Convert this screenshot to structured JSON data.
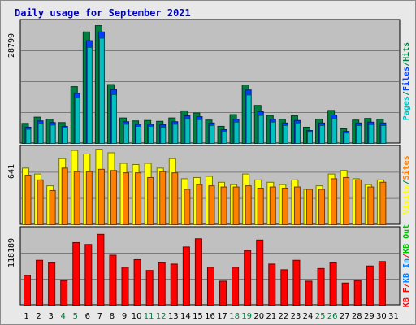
{
  "title": "Daily usage for September 2021",
  "colors": {
    "pages": "#00c0c0",
    "files": "#0040ff",
    "hits": "#008040",
    "sites": "#ff8000",
    "visits": "#ffff00",
    "kb_out": "#00c000",
    "kb_in": "#0080ff",
    "kb_f": "#ff0000",
    "weekday_tick": "#000000",
    "weekend_tick": "#008040"
  },
  "chart_data": [
    {
      "type": "bar",
      "panel": "hits-files-pages",
      "categories": [
        "1",
        "2",
        "3",
        "4",
        "5",
        "6",
        "7",
        "8",
        "9",
        "10",
        "11",
        "12",
        "13",
        "14",
        "15",
        "16",
        "17",
        "18",
        "19",
        "20",
        "21",
        "22",
        "23",
        "24",
        "25",
        "26",
        "27",
        "28",
        "29",
        "30",
        "31"
      ],
      "ylabel": "28799",
      "right_labels": [
        "Pages",
        "/",
        "Files",
        "/",
        "Hits"
      ],
      "ylim": [
        0,
        28799
      ],
      "series": [
        {
          "name": "Hits",
          "values": [
            4800,
            6300,
            5800,
            5000,
            13600,
            26700,
            28200,
            14100,
            6100,
            5400,
            5500,
            5300,
            6100,
            7800,
            7300,
            5600,
            4100,
            6900,
            14000,
            9100,
            6700,
            5800,
            6600,
            3900,
            5800,
            7900,
            3500,
            5600,
            6000,
            5800,
            null
          ]
        },
        {
          "name": "Files",
          "values": [
            3900,
            5400,
            5000,
            4100,
            12000,
            24600,
            26700,
            12900,
            5200,
            4600,
            4600,
            4500,
            5200,
            6600,
            6400,
            4900,
            3300,
            5800,
            12800,
            7600,
            5800,
            4900,
            5500,
            3100,
            4900,
            6800,
            2900,
            4900,
            5100,
            4900,
            null
          ]
        },
        {
          "name": "Pages",
          "values": [
            3400,
            4700,
            4400,
            3700,
            11000,
            23000,
            25200,
            11700,
            4600,
            4100,
            4100,
            3900,
            4600,
            5900,
            5700,
            4300,
            2900,
            5100,
            11600,
            6700,
            5100,
            4300,
            4900,
            2700,
            4300,
            6000,
            2500,
            4300,
            4500,
            4300,
            null
          ]
        }
      ]
    },
    {
      "type": "bar",
      "panel": "visits-sites",
      "categories": [
        "1",
        "2",
        "3",
        "4",
        "5",
        "6",
        "7",
        "8",
        "9",
        "10",
        "11",
        "12",
        "13",
        "14",
        "15",
        "16",
        "17",
        "18",
        "19",
        "20",
        "21",
        "22",
        "23",
        "24",
        "25",
        "26",
        "27",
        "28",
        "29",
        "30",
        "31"
      ],
      "ylabel": "641",
      "right_labels": [
        "Visits",
        "/",
        "Sites"
      ],
      "ylim": [
        0,
        641
      ],
      "series": [
        {
          "name": "Visits",
          "values": [
            480,
            430,
            330,
            560,
            630,
            600,
            640,
            610,
            520,
            510,
            520,
            480,
            560,
            390,
            400,
            410,
            360,
            340,
            430,
            380,
            360,
            340,
            380,
            300,
            330,
            430,
            460,
            390,
            340,
            380,
            null
          ]
        },
        {
          "name": "Sites",
          "values": [
            420,
            380,
            290,
            480,
            450,
            450,
            470,
            460,
            440,
            440,
            400,
            450,
            440,
            300,
            340,
            330,
            320,
            320,
            330,
            310,
            320,
            310,
            320,
            300,
            300,
            390,
            400,
            380,
            320,
            360,
            null
          ]
        }
      ]
    },
    {
      "type": "bar",
      "panel": "kbytes",
      "categories": [
        "1",
        "2",
        "3",
        "4",
        "5",
        "6",
        "7",
        "8",
        "9",
        "10",
        "11",
        "12",
        "13",
        "14",
        "15",
        "16",
        "17",
        "18",
        "19",
        "20",
        "21",
        "22",
        "23",
        "24",
        "25",
        "26",
        "27",
        "28",
        "29",
        "30",
        "31"
      ],
      "ylabel": "118189",
      "right_labels": [
        "KB F",
        "/",
        "KB In",
        "/",
        "KB Out"
      ],
      "ylim": [
        0,
        118189
      ],
      "series": [
        {
          "name": "KB F",
          "values": [
            47000,
            71000,
            67000,
            39000,
            99000,
            96000,
            112000,
            79000,
            60000,
            72000,
            55000,
            67000,
            65000,
            92000,
            105000,
            60000,
            38000,
            60000,
            86000,
            103000,
            65000,
            56000,
            71000,
            38000,
            58000,
            67000,
            35000,
            39000,
            62000,
            69000,
            null
          ]
        }
      ]
    }
  ]
}
